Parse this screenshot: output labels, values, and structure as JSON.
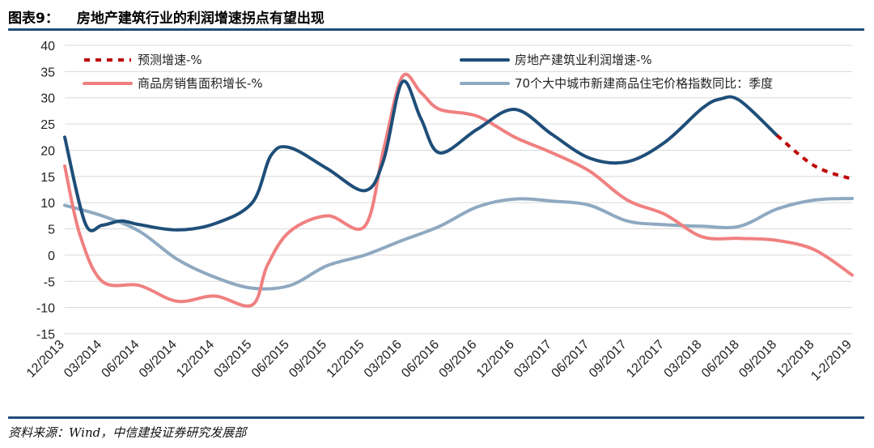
{
  "header": {
    "figure_label": "图表9：",
    "title": "房地产建筑行业的利润增速拐点有望出现"
  },
  "footer": {
    "source": "资料来源：Wind，中信建投证券研究发展部"
  },
  "chart_data": {
    "type": "line",
    "title": "房地产建筑行业的利润增速拐点有望出现",
    "xlabel": "",
    "ylabel": "",
    "ylim": [
      -15,
      40
    ],
    "yticks": [
      -15,
      -10,
      -5,
      0,
      5,
      10,
      15,
      20,
      25,
      30,
      35,
      40
    ],
    "categories": [
      "12/2013",
      "03/2014",
      "06/2014",
      "09/2014",
      "12/2014",
      "03/2015",
      "06/2015",
      "09/2015",
      "12/2015",
      "03/2016",
      "06/2016",
      "09/2016",
      "12/2016",
      "03/2017",
      "06/2017",
      "09/2017",
      "12/2017",
      "03/2018",
      "06/2018",
      "09/2018",
      "12/2018",
      "1-2/2019"
    ],
    "grid": true,
    "legend_position": "top",
    "series": [
      {
        "name": "预测增速-%",
        "color": "#c00000",
        "dashed": true,
        "points": [
          [
            19,
            22.8
          ],
          [
            20,
            17.0
          ],
          [
            21,
            14.5
          ]
        ]
      },
      {
        "name": "房地产建筑业利润增速-%",
        "color": "#1f4e79",
        "dashed": false,
        "points": [
          [
            0,
            22.5
          ],
          [
            0.55,
            6.0
          ],
          [
            1,
            5.7
          ],
          [
            1.5,
            6.5
          ],
          [
            2,
            5.8
          ],
          [
            3,
            4.8
          ],
          [
            4,
            6.0
          ],
          [
            5,
            10.0
          ],
          [
            5.5,
            19.0
          ],
          [
            6,
            20.5
          ],
          [
            7,
            16.5
          ],
          [
            8,
            12.3
          ],
          [
            8.5,
            18.0
          ],
          [
            9,
            33.0
          ],
          [
            9.5,
            26.0
          ],
          [
            10,
            19.5
          ],
          [
            11,
            24.0
          ],
          [
            12,
            27.8
          ],
          [
            13,
            23.0
          ],
          [
            14,
            18.5
          ],
          [
            15,
            17.8
          ],
          [
            16,
            21.5
          ],
          [
            17,
            28.0
          ],
          [
            17.5,
            29.8
          ],
          [
            18,
            29.5
          ],
          [
            19,
            22.8
          ]
        ]
      },
      {
        "name": "商品房销售面积增长-%",
        "color": "#f08080",
        "dashed": false,
        "points": [
          [
            0,
            17.0
          ],
          [
            0.4,
            4.0
          ],
          [
            1,
            -5.0
          ],
          [
            2,
            -5.8
          ],
          [
            3,
            -8.8
          ],
          [
            4,
            -7.8
          ],
          [
            5,
            -9.5
          ],
          [
            5.4,
            -2.0
          ],
          [
            6,
            4.5
          ],
          [
            7,
            7.5
          ],
          [
            8,
            5.5
          ],
          [
            8.5,
            20.0
          ],
          [
            9,
            34.0
          ],
          [
            9.5,
            31.0
          ],
          [
            10,
            27.8
          ],
          [
            11,
            26.5
          ],
          [
            12,
            22.5
          ],
          [
            13,
            19.5
          ],
          [
            14,
            16.0
          ],
          [
            15,
            10.5
          ],
          [
            16,
            7.8
          ],
          [
            17,
            3.5
          ],
          [
            18,
            3.2
          ],
          [
            19,
            2.8
          ],
          [
            20,
            1.0
          ],
          [
            21,
            -3.8
          ]
        ]
      },
      {
        "name": "70个大中城市新建商品住宅价格指数同比：季度",
        "color": "#8ea9c1",
        "dashed": false,
        "points": [
          [
            0,
            9.5
          ],
          [
            1,
            7.5
          ],
          [
            2,
            4.5
          ],
          [
            3,
            -0.8
          ],
          [
            4,
            -4.2
          ],
          [
            5,
            -6.3
          ],
          [
            6,
            -5.8
          ],
          [
            7,
            -2.0
          ],
          [
            8,
            0.0
          ],
          [
            9,
            2.8
          ],
          [
            10,
            5.5
          ],
          [
            11,
            9.2
          ],
          [
            12,
            10.7
          ],
          [
            13,
            10.3
          ],
          [
            14,
            9.5
          ],
          [
            15,
            6.5
          ],
          [
            16,
            5.8
          ],
          [
            17,
            5.5
          ],
          [
            18,
            5.5
          ],
          [
            19,
            8.8
          ],
          [
            20,
            10.5
          ],
          [
            21,
            10.8
          ]
        ]
      }
    ]
  }
}
